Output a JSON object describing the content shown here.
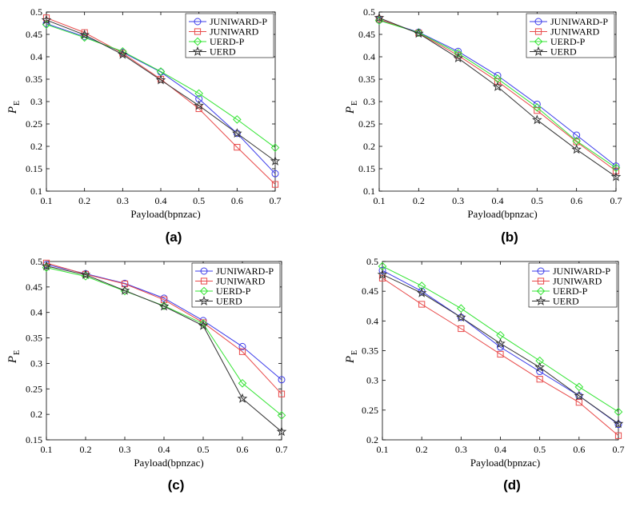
{
  "colors": {
    "JUNIWARD-P": "#3b3bea",
    "JUNIWARD": "#e84a4a",
    "UERD-P": "#33e433",
    "UERD": "#333333"
  },
  "chart_data": [
    {
      "type": "line",
      "caption": "(a)",
      "xlabel": "Payload(bpnzac)",
      "ylabel_main": "P",
      "ylabel_sub": "E",
      "xlim": [
        0.1,
        0.7
      ],
      "ylim": [
        0.1,
        0.5
      ],
      "xticks": [
        "0.1",
        "0.2",
        "0.3",
        "0.4",
        "0.5",
        "0.6",
        "0.7"
      ],
      "yticks": [
        "0.1",
        "0.15",
        "0.2",
        "0.25",
        "0.3",
        "0.35",
        "0.4",
        "0.45",
        "0.5"
      ],
      "legend_position": "top-right",
      "x": [
        0.1,
        0.2,
        0.3,
        0.4,
        0.5,
        0.6,
        0.7
      ],
      "series": [
        {
          "name": "JUNIWARD-P",
          "marker": "circle",
          "values": [
            0.474,
            0.445,
            0.41,
            0.366,
            0.306,
            0.229,
            0.139
          ]
        },
        {
          "name": "JUNIWARD",
          "marker": "square",
          "values": [
            0.487,
            0.454,
            0.408,
            0.35,
            0.284,
            0.198,
            0.115
          ]
        },
        {
          "name": "UERD-P",
          "marker": "diamond",
          "values": [
            0.472,
            0.443,
            0.412,
            0.367,
            0.318,
            0.26,
            0.197
          ]
        },
        {
          "name": "UERD",
          "marker": "star",
          "values": [
            0.482,
            0.449,
            0.405,
            0.348,
            0.291,
            0.229,
            0.167
          ]
        }
      ]
    },
    {
      "type": "line",
      "caption": "(b)",
      "xlabel": "Payload(bpnzac)",
      "ylabel_main": "P",
      "ylabel_sub": "E",
      "xlim": [
        0.1,
        0.7
      ],
      "ylim": [
        0.1,
        0.5
      ],
      "xticks": [
        "0.1",
        "0.2",
        "0.3",
        "0.4",
        "0.5",
        "0.6",
        "0.7"
      ],
      "yticks": [
        "0.1",
        "0.15",
        "0.2",
        "0.25",
        "0.3",
        "0.35",
        "0.4",
        "0.45",
        "0.5"
      ],
      "legend_position": "top-right",
      "x": [
        0.1,
        0.2,
        0.3,
        0.4,
        0.5,
        0.6,
        0.7
      ],
      "series": [
        {
          "name": "JUNIWARD-P",
          "marker": "circle",
          "values": [
            0.482,
            0.455,
            0.412,
            0.358,
            0.294,
            0.225,
            0.156
          ]
        },
        {
          "name": "JUNIWARD",
          "marker": "square",
          "values": [
            0.484,
            0.453,
            0.403,
            0.345,
            0.28,
            0.21,
            0.145
          ]
        },
        {
          "name": "UERD-P",
          "marker": "diamond",
          "values": [
            0.481,
            0.454,
            0.408,
            0.351,
            0.287,
            0.212,
            0.152
          ]
        },
        {
          "name": "UERD",
          "marker": "star",
          "values": [
            0.487,
            0.452,
            0.397,
            0.333,
            0.259,
            0.193,
            0.132
          ]
        }
      ]
    },
    {
      "type": "line",
      "caption": "(c)",
      "xlabel": "Payload(bpnzac)",
      "ylabel_main": "P",
      "ylabel_sub": "E",
      "xlim": [
        0.1,
        0.7
      ],
      "ylim": [
        0.15,
        0.5
      ],
      "xticks": [
        "0.1",
        "0.2",
        "0.3",
        "0.4",
        "0.5",
        "0.6",
        "0.7"
      ],
      "yticks": [
        "0.15",
        "0.2",
        "0.25",
        "0.3",
        "0.35",
        "0.4",
        "0.45",
        "0.5"
      ],
      "legend_position": "top-right",
      "x": [
        0.1,
        0.2,
        0.3,
        0.4,
        0.5,
        0.6,
        0.7
      ],
      "series": [
        {
          "name": "JUNIWARD-P",
          "marker": "circle",
          "values": [
            0.494,
            0.476,
            0.457,
            0.428,
            0.384,
            0.333,
            0.268
          ]
        },
        {
          "name": "JUNIWARD",
          "marker": "square",
          "values": [
            0.497,
            0.475,
            0.456,
            0.425,
            0.38,
            0.323,
            0.24
          ]
        },
        {
          "name": "UERD-P",
          "marker": "diamond",
          "values": [
            0.488,
            0.471,
            0.442,
            0.413,
            0.378,
            0.261,
            0.198
          ]
        },
        {
          "name": "UERD",
          "marker": "star",
          "values": [
            0.491,
            0.474,
            0.443,
            0.412,
            0.374,
            0.231,
            0.166
          ]
        }
      ]
    },
    {
      "type": "line",
      "caption": "(d)",
      "xlabel": "Payload(bpnzac)",
      "ylabel_main": "P",
      "ylabel_sub": "E",
      "xlim": [
        0.1,
        0.7
      ],
      "ylim": [
        0.2,
        0.5
      ],
      "xticks": [
        "0.1",
        "0.2",
        "0.3",
        "0.4",
        "0.5",
        "0.6",
        "0.7"
      ],
      "yticks": [
        "0.2",
        "0.25",
        "0.3",
        "0.35",
        "0.4",
        "0.45",
        "0.5"
      ],
      "legend_position": "top-right",
      "x": [
        0.1,
        0.2,
        0.3,
        0.4,
        0.5,
        0.6,
        0.7
      ],
      "series": [
        {
          "name": "JUNIWARD-P",
          "marker": "circle",
          "values": [
            0.485,
            0.45,
            0.406,
            0.356,
            0.315,
            0.274,
            0.226
          ]
        },
        {
          "name": "JUNIWARD",
          "marker": "square",
          "values": [
            0.472,
            0.428,
            0.387,
            0.344,
            0.302,
            0.263,
            0.207
          ]
        },
        {
          "name": "UERD-P",
          "marker": "diamond",
          "values": [
            0.492,
            0.459,
            0.421,
            0.376,
            0.333,
            0.289,
            0.247
          ]
        },
        {
          "name": "UERD",
          "marker": "star",
          "values": [
            0.478,
            0.447,
            0.406,
            0.362,
            0.322,
            0.274,
            0.227
          ]
        }
      ]
    }
  ]
}
